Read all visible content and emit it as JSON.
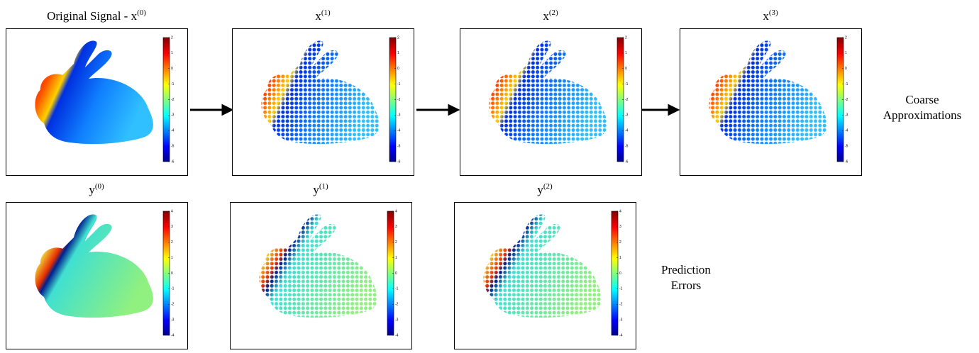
{
  "top_row": [
    {
      "title": {
        "text": "Original Signal - x",
        "sup": "(0)"
      },
      "colorbar_ticks": [
        2,
        1,
        0,
        -1,
        -2,
        -3,
        -4,
        -5,
        -6
      ]
    },
    {
      "title": {
        "text": "x",
        "sup": "(1)"
      },
      "colorbar_ticks": [
        2,
        1,
        0,
        -1,
        -2,
        -3,
        -4,
        -5,
        -6
      ]
    },
    {
      "title": {
        "text": "x",
        "sup": "(2)"
      },
      "colorbar_ticks": [
        2,
        1,
        0,
        -1,
        -2,
        -3,
        -4,
        -5,
        -6
      ]
    },
    {
      "title": {
        "text": "x",
        "sup": "(3)"
      },
      "colorbar_ticks": [
        2,
        1,
        0,
        -1,
        -2,
        -3,
        -4,
        -5,
        -6
      ]
    }
  ],
  "bottom_row": [
    {
      "title": {
        "text": "y",
        "sup": "(0)"
      },
      "colorbar_ticks": [
        4,
        3,
        2,
        1,
        0,
        -1,
        -2,
        -3,
        -4
      ]
    },
    {
      "title": {
        "text": "y",
        "sup": "(1)"
      },
      "colorbar_ticks": [
        4,
        3,
        2,
        1,
        0,
        -1,
        -2,
        -3,
        -4
      ]
    },
    {
      "title": {
        "text": "y",
        "sup": "(2)"
      },
      "colorbar_ticks": [
        4,
        3,
        2,
        1,
        0,
        -1,
        -2,
        -3,
        -4
      ]
    }
  ],
  "top_label": [
    "Coarse",
    "Approximations"
  ],
  "bottom_label": [
    "Prediction",
    "Errors"
  ]
}
